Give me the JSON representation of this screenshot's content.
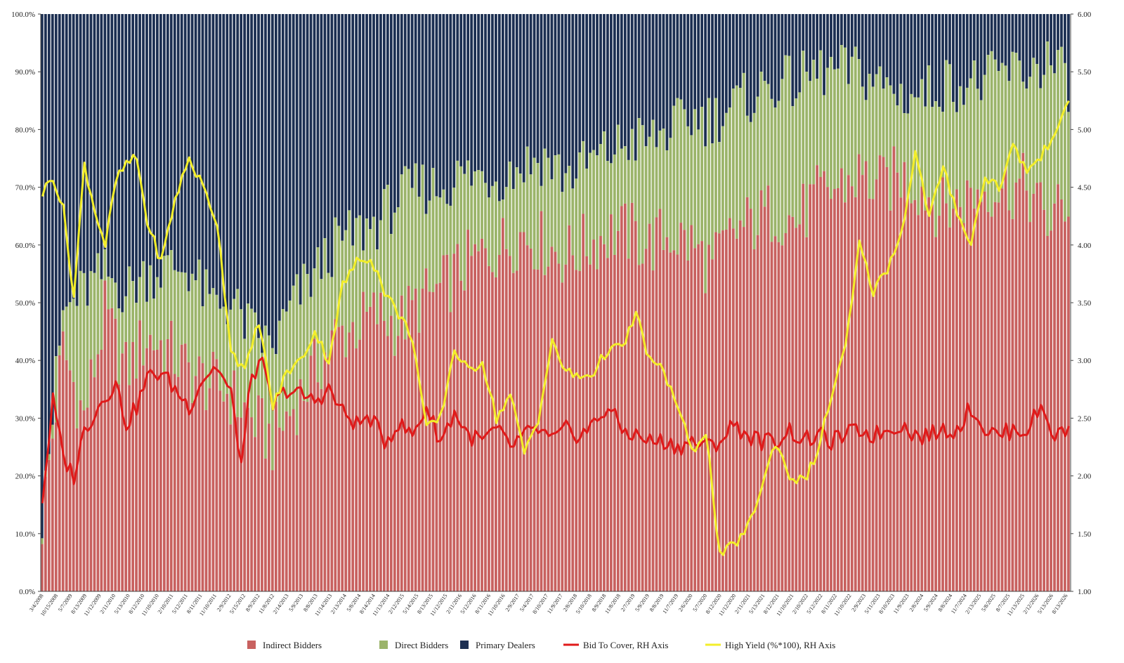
{
  "chart_data": {
    "type": "bar",
    "stacked": true,
    "left_axis": {
      "ticks": [
        "0.0%",
        "10.0%",
        "20.0%",
        "30.0%",
        "40.0%",
        "50.0%",
        "60.0%",
        "70.0%",
        "80.0%",
        "90.0%",
        "100.0%"
      ],
      "range": [
        0,
        100
      ]
    },
    "right_axis": {
      "ticks": [
        "1.00",
        "1.50",
        "2.00",
        "2.50",
        "3.00",
        "3.50",
        "4.00",
        "4.50",
        "5.00",
        "5.50",
        "6.00"
      ],
      "range": [
        1,
        6
      ]
    },
    "x_ticks": [
      "3/4/2008",
      "10/15/2008",
      "5/7/2009",
      "8/13/2009",
      "11/12/2009",
      "2/11/2010",
      "5/13/2010",
      "8/12/2010",
      "11/10/2010",
      "2/10/2011",
      "5/12/2011",
      "8/11/2011",
      "11/10/2011",
      "2/9/2012",
      "5/15/2012",
      "8/9/2012",
      "11/8/2012",
      "2/14/2013",
      "5/9/2013",
      "8/8/2013",
      "11/14/2013",
      "2/13/2014",
      "5/8/2014",
      "8/14/2014",
      "11/13/2014",
      "2/12/2015",
      "5/14/2015",
      "8/13/2015",
      "11/12/2015",
      "2/11/2016",
      "5/12/2016",
      "8/11/2016",
      "11/10/2016",
      "2/9/2017",
      "5/4/2017",
      "8/10/2017",
      "11/9/2017",
      "2/8/2018",
      "5/10/2018",
      "8/9/2018",
      "11/8/2018",
      "2/7/2019",
      "5/9/2019",
      "8/8/2019",
      "11/7/2019",
      "2/6/2020",
      "5/7/2020",
      "8/12/2020",
      "11/12/2020",
      "2/11/2021",
      "5/13/2021",
      "8/12/2021",
      "11/10/2021",
      "2/10/2022",
      "5/12/2022",
      "8/11/2022",
      "11/10/2022",
      "2/9/2023",
      "5/11/2023",
      "8/10/2023",
      "11/9/2023",
      "2/8/2024",
      "5/9/2024",
      "8/8/2024",
      "11/7/2024",
      "2/13/2025",
      "5/8/2025",
      "8/7/2025",
      "11/13/2025",
      "2/12/2026",
      "5/13/2026",
      "8/13/2026"
    ],
    "series": [
      {
        "name": "Indirect Bidders",
        "axis": "left",
        "color": "#c8615f"
      },
      {
        "name": "Direct Bidders",
        "axis": "left",
        "color": "#9bb46a"
      },
      {
        "name": "Primary Dealers",
        "axis": "left",
        "color": "#1c2f52"
      },
      {
        "name": "Bid To Cover, RH Axis",
        "axis": "right",
        "type": "line",
        "color": "#e01a1a"
      },
      {
        "name": "High Yield (%*100), RH Axis",
        "axis": "right",
        "type": "line",
        "color": "#f3ee2a"
      }
    ],
    "indirect_keypoints": [
      [
        0,
        12
      ],
      [
        6,
        42
      ],
      [
        12,
        30
      ],
      [
        18,
        48
      ],
      [
        24,
        38
      ],
      [
        30,
        44
      ],
      [
        36,
        42
      ],
      [
        42,
        38
      ],
      [
        48,
        36
      ],
      [
        54,
        34
      ],
      [
        60,
        30
      ],
      [
        66,
        26
      ],
      [
        72,
        32
      ],
      [
        78,
        38
      ],
      [
        84,
        44
      ],
      [
        90,
        46
      ],
      [
        96,
        48
      ],
      [
        102,
        46
      ],
      [
        108,
        50
      ],
      [
        114,
        52
      ],
      [
        120,
        56
      ],
      [
        126,
        58
      ],
      [
        132,
        60
      ],
      [
        138,
        62
      ],
      [
        144,
        60
      ],
      [
        150,
        58
      ],
      [
        156,
        60
      ],
      [
        162,
        62
      ],
      [
        168,
        62
      ],
      [
        174,
        60
      ],
      [
        180,
        62
      ],
      [
        186,
        60
      ],
      [
        192,
        56
      ],
      [
        198,
        62
      ],
      [
        204,
        64
      ],
      [
        210,
        66
      ],
      [
        216,
        64
      ],
      [
        222,
        68
      ],
      [
        228,
        70
      ],
      [
        234,
        72
      ],
      [
        240,
        70
      ],
      [
        246,
        72
      ],
      [
        252,
        70
      ],
      [
        258,
        66
      ],
      [
        264,
        68
      ],
      [
        270,
        70
      ],
      [
        276,
        70
      ],
      [
        282,
        70
      ],
      [
        288,
        64
      ],
      [
        294,
        68
      ]
    ],
    "direct_keypoints": [
      [
        0,
        13
      ],
      [
        6,
        48
      ],
      [
        12,
        52
      ],
      [
        18,
        55
      ],
      [
        24,
        52
      ],
      [
        30,
        55
      ],
      [
        36,
        56
      ],
      [
        42,
        56
      ],
      [
        48,
        50
      ],
      [
        54,
        50
      ],
      [
        60,
        45
      ],
      [
        66,
        42
      ],
      [
        72,
        50
      ],
      [
        78,
        55
      ],
      [
        84,
        60
      ],
      [
        90,
        62
      ],
      [
        96,
        64
      ],
      [
        102,
        68
      ],
      [
        108,
        70
      ],
      [
        114,
        70
      ],
      [
        120,
        72
      ],
      [
        126,
        72
      ],
      [
        132,
        72
      ],
      [
        138,
        74
      ],
      [
        144,
        75
      ],
      [
        150,
        72
      ],
      [
        156,
        74
      ],
      [
        162,
        76
      ],
      [
        168,
        78
      ],
      [
        174,
        78
      ],
      [
        180,
        80
      ],
      [
        186,
        82
      ],
      [
        192,
        82
      ],
      [
        198,
        84
      ],
      [
        204,
        86
      ],
      [
        210,
        88
      ],
      [
        216,
        88
      ],
      [
        222,
        90
      ],
      [
        228,
        90
      ],
      [
        234,
        90
      ],
      [
        240,
        88
      ],
      [
        246,
        86
      ],
      [
        252,
        86
      ],
      [
        258,
        88
      ],
      [
        264,
        88
      ],
      [
        270,
        88
      ],
      [
        276,
        90
      ],
      [
        282,
        90
      ],
      [
        288,
        92
      ],
      [
        294,
        88
      ]
    ],
    "bid_to_cover_keypoints": [
      [
        0,
        1.8
      ],
      [
        3,
        2.65
      ],
      [
        6,
        2.15
      ],
      [
        9,
        2.0
      ],
      [
        12,
        2.4
      ],
      [
        15,
        2.55
      ],
      [
        18,
        2.7
      ],
      [
        21,
        2.8
      ],
      [
        24,
        2.45
      ],
      [
        27,
        2.6
      ],
      [
        30,
        2.85
      ],
      [
        34,
        2.9
      ],
      [
        38,
        2.75
      ],
      [
        42,
        2.6
      ],
      [
        46,
        2.85
      ],
      [
        50,
        2.95
      ],
      [
        54,
        2.7
      ],
      [
        57,
        2.1
      ],
      [
        60,
        2.9
      ],
      [
        63,
        2.95
      ],
      [
        66,
        2.6
      ],
      [
        70,
        2.75
      ],
      [
        74,
        2.7
      ],
      [
        78,
        2.65
      ],
      [
        82,
        2.75
      ],
      [
        86,
        2.55
      ],
      [
        90,
        2.45
      ],
      [
        94,
        2.5
      ],
      [
        98,
        2.3
      ],
      [
        102,
        2.45
      ],
      [
        106,
        2.35
      ],
      [
        110,
        2.6
      ],
      [
        114,
        2.3
      ],
      [
        118,
        2.55
      ],
      [
        122,
        2.35
      ],
      [
        126,
        2.3
      ],
      [
        130,
        2.4
      ],
      [
        134,
        2.25
      ],
      [
        138,
        2.35
      ],
      [
        142,
        2.4
      ],
      [
        146,
        2.3
      ],
      [
        150,
        2.4
      ],
      [
        154,
        2.35
      ],
      [
        158,
        2.45
      ],
      [
        162,
        2.6
      ],
      [
        166,
        2.4
      ],
      [
        170,
        2.35
      ],
      [
        174,
        2.3
      ],
      [
        178,
        2.3
      ],
      [
        182,
        2.25
      ],
      [
        186,
        2.3
      ],
      [
        190,
        2.25
      ],
      [
        194,
        2.3
      ],
      [
        198,
        2.45
      ],
      [
        202,
        2.35
      ],
      [
        206,
        2.3
      ],
      [
        210,
        2.3
      ],
      [
        214,
        2.4
      ],
      [
        218,
        2.3
      ],
      [
        222,
        2.35
      ],
      [
        226,
        2.3
      ],
      [
        230,
        2.35
      ],
      [
        234,
        2.4
      ],
      [
        238,
        2.35
      ],
      [
        242,
        2.4
      ],
      [
        246,
        2.45
      ],
      [
        250,
        2.35
      ],
      [
        254,
        2.35
      ],
      [
        258,
        2.4
      ],
      [
        262,
        2.4
      ],
      [
        266,
        2.6
      ],
      [
        270,
        2.4
      ],
      [
        274,
        2.35
      ],
      [
        278,
        2.4
      ],
      [
        282,
        2.4
      ],
      [
        286,
        2.6
      ],
      [
        290,
        2.35
      ],
      [
        294,
        2.4
      ]
    ],
    "high_yield_keypoints": [
      [
        0,
        4.45
      ],
      [
        3,
        4.6
      ],
      [
        6,
        4.3
      ],
      [
        9,
        3.55
      ],
      [
        12,
        4.7
      ],
      [
        15,
        4.3
      ],
      [
        18,
        4.0
      ],
      [
        21,
        4.55
      ],
      [
        24,
        4.7
      ],
      [
        27,
        4.75
      ],
      [
        30,
        4.2
      ],
      [
        34,
        3.85
      ],
      [
        38,
        4.4
      ],
      [
        42,
        4.75
      ],
      [
        46,
        4.5
      ],
      [
        50,
        4.2
      ],
      [
        54,
        3.1
      ],
      [
        58,
        2.9
      ],
      [
        62,
        3.35
      ],
      [
        66,
        2.6
      ],
      [
        70,
        2.9
      ],
      [
        74,
        3.0
      ],
      [
        78,
        3.25
      ],
      [
        82,
        3.0
      ],
      [
        86,
        3.65
      ],
      [
        90,
        3.85
      ],
      [
        94,
        3.9
      ],
      [
        98,
        3.6
      ],
      [
        102,
        3.4
      ],
      [
        106,
        3.2
      ],
      [
        110,
        2.4
      ],
      [
        114,
        2.5
      ],
      [
        118,
        3.1
      ],
      [
        122,
        2.9
      ],
      [
        126,
        3.0
      ],
      [
        130,
        2.5
      ],
      [
        134,
        2.7
      ],
      [
        138,
        2.2
      ],
      [
        142,
        2.5
      ],
      [
        146,
        3.15
      ],
      [
        150,
        2.9
      ],
      [
        154,
        2.85
      ],
      [
        158,
        2.9
      ],
      [
        162,
        3.1
      ],
      [
        166,
        3.1
      ],
      [
        170,
        3.4
      ],
      [
        174,
        3.0
      ],
      [
        178,
        2.9
      ],
      [
        182,
        2.6
      ],
      [
        186,
        2.2
      ],
      [
        190,
        2.4
      ],
      [
        194,
        1.3
      ],
      [
        198,
        1.4
      ],
      [
        202,
        1.55
      ],
      [
        206,
        1.9
      ],
      [
        210,
        2.3
      ],
      [
        214,
        2.0
      ],
      [
        218,
        1.95
      ],
      [
        222,
        2.2
      ],
      [
        226,
        2.7
      ],
      [
        230,
        3.1
      ],
      [
        234,
        4.0
      ],
      [
        238,
        3.6
      ],
      [
        242,
        3.8
      ],
      [
        246,
        4.1
      ],
      [
        250,
        4.8
      ],
      [
        254,
        4.25
      ],
      [
        258,
        4.65
      ],
      [
        262,
        4.3
      ],
      [
        266,
        4.0
      ],
      [
        270,
        4.6
      ],
      [
        274,
        4.5
      ],
      [
        278,
        4.85
      ],
      [
        282,
        4.65
      ],
      [
        286,
        4.75
      ],
      [
        290,
        5.0
      ],
      [
        294,
        5.2
      ]
    ]
  },
  "legend": {
    "items": [
      {
        "label": "Indirect Bidders",
        "color": "#c8615f",
        "kind": "box"
      },
      {
        "label": "Direct Bidders",
        "color": "#9bb46a",
        "kind": "box"
      },
      {
        "label": "Primary Dealers",
        "color": "#1c2f52",
        "kind": "box"
      },
      {
        "label": "Bid To Cover, RH Axis",
        "color": "#e01a1a",
        "kind": "line"
      },
      {
        "label": "High Yield (%*100), RH Axis",
        "color": "#f3ee2a",
        "kind": "line"
      }
    ]
  }
}
